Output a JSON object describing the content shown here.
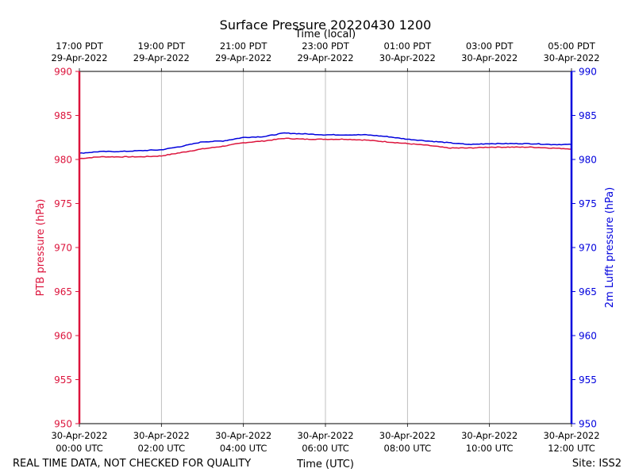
{
  "chart_data": {
    "type": "line",
    "title": "Surface Pressure 20220430 1200",
    "xlabel": "Time (UTC)",
    "xlabel_top": "Time (local)",
    "ylabel_left": "PTB pressure (hPa)",
    "ylabel_right": "2m Lufft pressure (hPa)",
    "ylim": [
      950,
      990
    ],
    "y_ticks": [
      "950",
      "955",
      "960",
      "965",
      "970",
      "975",
      "980",
      "985",
      "990"
    ],
    "xlim_hours_utc": [
      0,
      12
    ],
    "x_ticks_bottom": [
      {
        "date": "30-Apr-2022",
        "time": "00:00 UTC"
      },
      {
        "date": "30-Apr-2022",
        "time": "02:00 UTC"
      },
      {
        "date": "30-Apr-2022",
        "time": "04:00 UTC"
      },
      {
        "date": "30-Apr-2022",
        "time": "06:00 UTC"
      },
      {
        "date": "30-Apr-2022",
        "time": "08:00 UTC"
      },
      {
        "date": "30-Apr-2022",
        "time": "10:00 UTC"
      },
      {
        "date": "30-Apr-2022",
        "time": "12:00 UTC"
      }
    ],
    "x_ticks_top": [
      {
        "time": "17:00 PDT",
        "date": "29-Apr-2022"
      },
      {
        "time": "19:00 PDT",
        "date": "29-Apr-2022"
      },
      {
        "time": "21:00 PDT",
        "date": "29-Apr-2022"
      },
      {
        "time": "23:00 PDT",
        "date": "29-Apr-2022"
      },
      {
        "time": "01:00 PDT",
        "date": "30-Apr-2022"
      },
      {
        "time": "03:00 PDT",
        "date": "30-Apr-2022"
      },
      {
        "time": "05:00 PDT",
        "date": "30-Apr-2022"
      }
    ],
    "grid": "vertical",
    "series": [
      {
        "name": "PTB pressure (hPa)",
        "axis": "left",
        "color": "#dc143c",
        "x_hours_utc": [
          0,
          0.5,
          1,
          1.5,
          2,
          2.5,
          3,
          3.5,
          4,
          4.5,
          5,
          5.5,
          6,
          6.5,
          7,
          7.5,
          8,
          8.5,
          9,
          9.5,
          10,
          10.5,
          11,
          11.5,
          12
        ],
        "values": [
          980.1,
          980.3,
          980.3,
          980.3,
          980.4,
          980.8,
          981.2,
          981.5,
          981.9,
          982.1,
          982.4,
          982.3,
          982.3,
          982.3,
          982.2,
          982.0,
          981.8,
          981.6,
          981.3,
          981.3,
          981.4,
          981.4,
          981.4,
          981.3,
          981.2
        ]
      },
      {
        "name": "2m Lufft pressure (hPa)",
        "axis": "right",
        "color": "#0000dd",
        "x_hours_utc": [
          0,
          0.5,
          1,
          1.5,
          2,
          2.5,
          3,
          3.5,
          4,
          4.5,
          5,
          5.5,
          6,
          6.5,
          7,
          7.5,
          8,
          8.5,
          9,
          9.5,
          10,
          10.5,
          11,
          11.5,
          12
        ],
        "values": [
          980.7,
          980.9,
          980.9,
          981.0,
          981.1,
          981.5,
          982.0,
          982.1,
          982.5,
          982.6,
          983.0,
          982.9,
          982.8,
          982.8,
          982.8,
          982.6,
          982.3,
          982.1,
          981.9,
          981.7,
          981.8,
          981.8,
          981.8,
          981.7,
          981.7
        ]
      }
    ]
  },
  "footer": {
    "left_note": "REAL TIME DATA, NOT CHECKED FOR QUALITY",
    "site": "Site: ISS2"
  }
}
